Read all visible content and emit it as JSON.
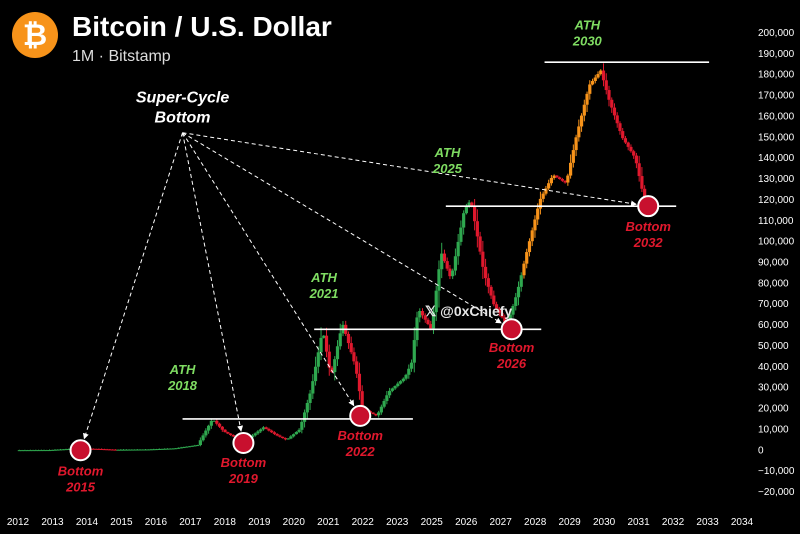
{
  "header": {
    "logo_glyph": "₿",
    "title": "Bitcoin / U.S. Dollar",
    "subtitle": "1M · Bitstamp"
  },
  "watermark": "𝕏 @0xChiefy",
  "colors": {
    "up": "#f7931a",
    "up_early": "#2fa84f",
    "down": "#e0182d",
    "ath": "#7fdc62",
    "bottom": "#e0182d",
    "marker_fill": "#c8102e"
  },
  "chart_data": {
    "type": "candlestick",
    "title": "Bitcoin / U.S. Dollar",
    "x_ticks": [
      "2012",
      "2013",
      "2014",
      "2015",
      "2016",
      "2017",
      "2018",
      "2019",
      "2020",
      "2021",
      "2022",
      "2023",
      "2025",
      "2026",
      "2027",
      "2028",
      "2029",
      "2030",
      "2031",
      "2032",
      "2033",
      "2034"
    ],
    "y_ticks": [
      "200,000",
      "190,000",
      "180,000",
      "170,000",
      "160,000",
      "150,000",
      "140,000",
      "130,000",
      "120,000",
      "110,000",
      "100,000",
      "90,000",
      "80,000",
      "70,000",
      "60,000",
      "50,000",
      "40,000",
      "30,000",
      "20,000",
      "10,000",
      "0",
      "−10,000",
      "−20,000"
    ],
    "ylim": [
      -20000,
      200000
    ],
    "xlim": [
      2012,
      2034
    ],
    "price_path": [
      [
        2012.0,
        50
      ],
      [
        2013.0,
        100
      ],
      [
        2013.9,
        900
      ],
      [
        2014.5,
        600
      ],
      [
        2015.0,
        250
      ],
      [
        2016.0,
        400
      ],
      [
        2016.8,
        900
      ],
      [
        2017.5,
        2500
      ],
      [
        2017.95,
        15000
      ],
      [
        2018.3,
        9000
      ],
      [
        2018.9,
        4000
      ],
      [
        2019.5,
        11000
      ],
      [
        2019.9,
        7200
      ],
      [
        2020.2,
        5000
      ],
      [
        2020.6,
        10000
      ],
      [
        2020.95,
        29000
      ],
      [
        2021.3,
        58000
      ],
      [
        2021.55,
        35000
      ],
      [
        2021.9,
        61000
      ],
      [
        2022.3,
        40000
      ],
      [
        2022.5,
        20000
      ],
      [
        2022.95,
        16500
      ],
      [
        2023.3,
        28000
      ],
      [
        2023.8,
        35000
      ],
      [
        2024.0,
        42000
      ],
      [
        2024.2,
        68000
      ],
      [
        2024.6,
        58000
      ],
      [
        2024.9,
        95000
      ],
      [
        2025.2,
        82000
      ],
      [
        2025.6,
        115000
      ],
      [
        2025.8,
        120000
      ],
      [
        2026.2,
        85000
      ],
      [
        2026.5,
        70000
      ],
      [
        2026.9,
        60000
      ],
      [
        2027.2,
        75000
      ],
      [
        2027.5,
        95000
      ],
      [
        2027.9,
        120000
      ],
      [
        2028.3,
        132000
      ],
      [
        2028.7,
        128000
      ],
      [
        2029.0,
        150000
      ],
      [
        2029.4,
        175000
      ],
      [
        2029.75,
        182000
      ],
      [
        2030.0,
        168000
      ],
      [
        2030.4,
        150000
      ],
      [
        2030.8,
        140000
      ],
      [
        2031.1,
        118000
      ]
    ],
    "levels": [
      {
        "name": "ATH 2018 level",
        "value": 15000,
        "x": [
          2017.0,
          2024.0
        ]
      },
      {
        "name": "ATH 2021 level",
        "value": 58000,
        "x": [
          2021.0,
          2027.9
        ]
      },
      {
        "name": "ATH 2025 level",
        "value": 117000,
        "x": [
          2025.0,
          2032.0
        ]
      },
      {
        "name": "ATH 2030 level",
        "value": 186000,
        "x": [
          2028.0,
          2033.0
        ]
      }
    ],
    "ath_labels": [
      {
        "line1": "ATH",
        "line2": "2018",
        "x": 2017.0,
        "y": 29000
      },
      {
        "line1": "ATH",
        "line2": "2021",
        "x": 2021.3,
        "y": 73000
      },
      {
        "line1": "ATH",
        "line2": "2025",
        "x": 2025.05,
        "y": 133000
      },
      {
        "line1": "ATH",
        "line2": "2030",
        "x": 2029.3,
        "y": 194000
      }
    ],
    "bottoms": [
      {
        "line1": "Bottom",
        "line2": "2015",
        "x": 2013.9,
        "y": 0,
        "lx": 2013.9,
        "ly": -12000
      },
      {
        "line1": "Bottom",
        "line2": "2019",
        "x": 2018.85,
        "y": 3500,
        "lx": 2018.85,
        "ly": -8000
      },
      {
        "line1": "Bottom",
        "line2": "2022",
        "x": 2022.4,
        "y": 16500,
        "lx": 2022.4,
        "ly": 5000
      },
      {
        "line1": "Bottom",
        "line2": "2026",
        "x": 2027.0,
        "y": 58000,
        "lx": 2027.0,
        "ly": 47000
      },
      {
        "line1": "Bottom",
        "line2": "2032",
        "x": 2031.15,
        "y": 117000,
        "lx": 2031.15,
        "ly": 105000
      }
    ],
    "annotation": {
      "line1": "Super-Cycle",
      "line2": "Bottom",
      "x": 2017.0,
      "y": 157000
    }
  }
}
